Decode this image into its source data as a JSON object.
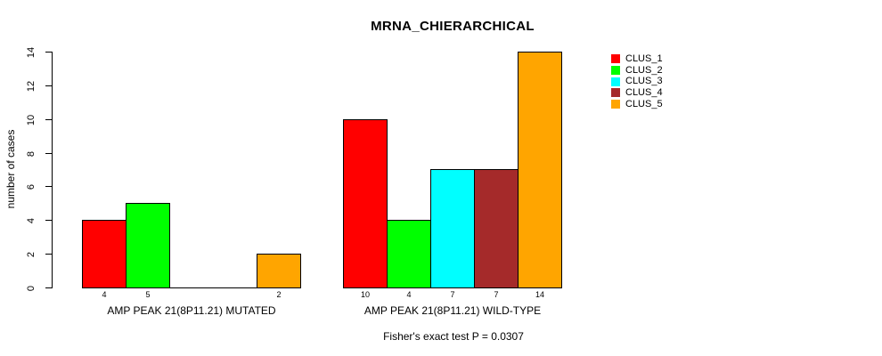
{
  "chart_data": {
    "type": "bar",
    "title": "MRNA_CHIERARCHICAL",
    "ylabel": "number of cases",
    "xlabel": "",
    "ylim": [
      0,
      14
    ],
    "yticks": [
      0,
      2,
      4,
      6,
      8,
      10,
      12,
      14
    ],
    "grid": false,
    "legend_position": "right",
    "categories": [
      "AMP PEAK 21(8P11.21) MUTATED",
      "AMP PEAK 21(8P11.21) WILD-TYPE"
    ],
    "series": [
      {
        "name": "CLUS_1",
        "color": "#FF0000",
        "values": [
          4,
          10
        ]
      },
      {
        "name": "CLUS_2",
        "color": "#00FF00",
        "values": [
          5,
          4
        ]
      },
      {
        "name": "CLUS_3",
        "color": "#00FFFF",
        "values": [
          0,
          7
        ]
      },
      {
        "name": "CLUS_4",
        "color": "#A52A2A",
        "values": [
          0,
          7
        ]
      },
      {
        "name": "CLUS_5",
        "color": "#FFA500",
        "values": [
          2,
          14
        ]
      }
    ],
    "bar_value_labels": [
      [
        "4",
        "5",
        "",
        "",
        "2"
      ],
      [
        "10",
        "4",
        "7",
        "7",
        "14"
      ]
    ],
    "annotation": "Fisher's exact test P = 0.0307",
    "axis_color": "#000000",
    "bar_border_color": "#000000",
    "background_color": "#FFFFFF"
  }
}
